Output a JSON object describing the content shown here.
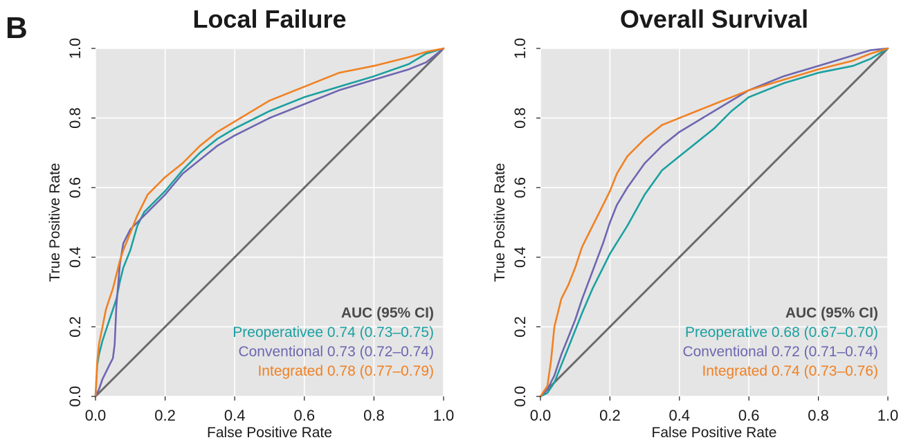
{
  "figure": {
    "panel_letter": "B"
  },
  "colors": {
    "panel_bg": "#e5e5e5",
    "grid": "#ffffff",
    "diagonal": "#6b6b6b",
    "preoperative": "#1aa0a0",
    "conventional": "#6d66b0",
    "integrated": "#f08123",
    "text": "#1a1a1a"
  },
  "chart_data": [
    {
      "type": "line",
      "title": "Local Failure",
      "xlabel": "False Positive Rate",
      "ylabel": "True Positive Rate",
      "xlim": [
        0,
        1
      ],
      "ylim": [
        0,
        1
      ],
      "x_ticks": [
        "0.0",
        "0.2",
        "0.4",
        "0.6",
        "0.8",
        "1.0"
      ],
      "y_ticks": [
        "0.0",
        "0.2",
        "0.4",
        "0.6",
        "0.8",
        "1.0"
      ],
      "grid": true,
      "legend_position": "bottom-right",
      "legend_title": "AUC (95% CI)",
      "diagonal": [
        [
          0,
          0
        ],
        [
          1,
          1
        ]
      ],
      "series": [
        {
          "name": "Preoperativee",
          "label": "Preoperativee 0.74 (0.73–0.75)",
          "color": "#1aa0a0",
          "x": [
            0,
            0.005,
            0.01,
            0.02,
            0.03,
            0.04,
            0.05,
            0.06,
            0.07,
            0.08,
            0.1,
            0.12,
            0.14,
            0.16,
            0.2,
            0.25,
            0.3,
            0.35,
            0.4,
            0.5,
            0.6,
            0.7,
            0.8,
            0.9,
            0.95,
            1
          ],
          "y": [
            0,
            0.09,
            0.12,
            0.16,
            0.19,
            0.22,
            0.25,
            0.28,
            0.33,
            0.37,
            0.42,
            0.49,
            0.53,
            0.55,
            0.59,
            0.65,
            0.7,
            0.74,
            0.77,
            0.82,
            0.86,
            0.89,
            0.92,
            0.955,
            0.985,
            1
          ]
        },
        {
          "name": "Conventional",
          "label": "Conventional 0.73 (0.72–0.74)",
          "color": "#6d66b0",
          "x": [
            0,
            0.01,
            0.02,
            0.03,
            0.04,
            0.05,
            0.055,
            0.06,
            0.07,
            0.08,
            0.1,
            0.12,
            0.15,
            0.2,
            0.25,
            0.3,
            0.35,
            0.4,
            0.5,
            0.6,
            0.7,
            0.8,
            0.9,
            0.95,
            1
          ],
          "y": [
            0,
            0.02,
            0.05,
            0.07,
            0.09,
            0.11,
            0.15,
            0.26,
            0.38,
            0.44,
            0.48,
            0.5,
            0.53,
            0.58,
            0.64,
            0.68,
            0.72,
            0.75,
            0.8,
            0.84,
            0.88,
            0.91,
            0.94,
            0.96,
            1
          ]
        },
        {
          "name": "Integrated",
          "label": "Integrated 0.78 (0.77–0.79)",
          "color": "#f08123",
          "x": [
            0,
            0.005,
            0.01,
            0.02,
            0.03,
            0.04,
            0.05,
            0.06,
            0.07,
            0.08,
            0.1,
            0.12,
            0.15,
            0.2,
            0.25,
            0.3,
            0.35,
            0.4,
            0.5,
            0.6,
            0.7,
            0.8,
            0.9,
            0.95,
            1
          ],
          "y": [
            0,
            0.1,
            0.15,
            0.2,
            0.25,
            0.28,
            0.31,
            0.35,
            0.39,
            0.42,
            0.47,
            0.52,
            0.58,
            0.63,
            0.67,
            0.72,
            0.76,
            0.79,
            0.85,
            0.89,
            0.93,
            0.95,
            0.975,
            0.99,
            1
          ]
        }
      ]
    },
    {
      "type": "line",
      "title": "Overall Survival",
      "xlabel": "False Positive Rate",
      "ylabel": "True Positive Rate",
      "xlim": [
        0,
        1
      ],
      "ylim": [
        0,
        1
      ],
      "x_ticks": [
        "0.0",
        "0.2",
        "0.4",
        "0.6",
        "0.8",
        "1.0"
      ],
      "y_ticks": [
        "0.0",
        "0.2",
        "0.4",
        "0.6",
        "0.8",
        "1.0"
      ],
      "grid": true,
      "legend_position": "bottom-right",
      "legend_title": "AUC (95% CI)",
      "diagonal": [
        [
          0,
          0
        ],
        [
          1,
          1
        ]
      ],
      "series": [
        {
          "name": "Preoperative",
          "label": "Preoperative 0.68 (0.67–0.70)",
          "color": "#1aa0a0",
          "x": [
            0,
            0.02,
            0.04,
            0.06,
            0.08,
            0.1,
            0.12,
            0.15,
            0.18,
            0.2,
            0.25,
            0.3,
            0.35,
            0.4,
            0.45,
            0.5,
            0.55,
            0.6,
            0.7,
            0.8,
            0.9,
            0.95,
            1
          ],
          "y": [
            0,
            0.01,
            0.04,
            0.09,
            0.14,
            0.19,
            0.24,
            0.31,
            0.37,
            0.41,
            0.49,
            0.58,
            0.65,
            0.69,
            0.73,
            0.77,
            0.82,
            0.86,
            0.9,
            0.93,
            0.95,
            0.97,
            1
          ]
        },
        {
          "name": "Conventional",
          "label": "Conventional 0.72 (0.71–0.74)",
          "color": "#6d66b0",
          "x": [
            0,
            0.02,
            0.04,
            0.06,
            0.08,
            0.1,
            0.12,
            0.15,
            0.18,
            0.2,
            0.22,
            0.25,
            0.3,
            0.35,
            0.4,
            0.45,
            0.5,
            0.55,
            0.6,
            0.7,
            0.8,
            0.9,
            0.95,
            1
          ],
          "y": [
            0,
            0.02,
            0.06,
            0.12,
            0.17,
            0.22,
            0.28,
            0.36,
            0.44,
            0.5,
            0.55,
            0.6,
            0.67,
            0.72,
            0.76,
            0.79,
            0.82,
            0.85,
            0.88,
            0.92,
            0.95,
            0.98,
            0.995,
            1
          ]
        },
        {
          "name": "Integrated",
          "label": "Integrated 0.74 (0.73–0.76)",
          "color": "#f08123",
          "x": [
            0,
            0.02,
            0.03,
            0.04,
            0.06,
            0.08,
            0.1,
            0.12,
            0.15,
            0.18,
            0.2,
            0.22,
            0.25,
            0.3,
            0.35,
            0.4,
            0.45,
            0.5,
            0.55,
            0.6,
            0.7,
            0.8,
            0.9,
            0.95,
            1
          ],
          "y": [
            0,
            0.03,
            0.1,
            0.2,
            0.28,
            0.32,
            0.37,
            0.43,
            0.49,
            0.55,
            0.59,
            0.64,
            0.69,
            0.74,
            0.78,
            0.8,
            0.82,
            0.84,
            0.86,
            0.88,
            0.91,
            0.94,
            0.965,
            0.985,
            1
          ]
        }
      ]
    }
  ]
}
